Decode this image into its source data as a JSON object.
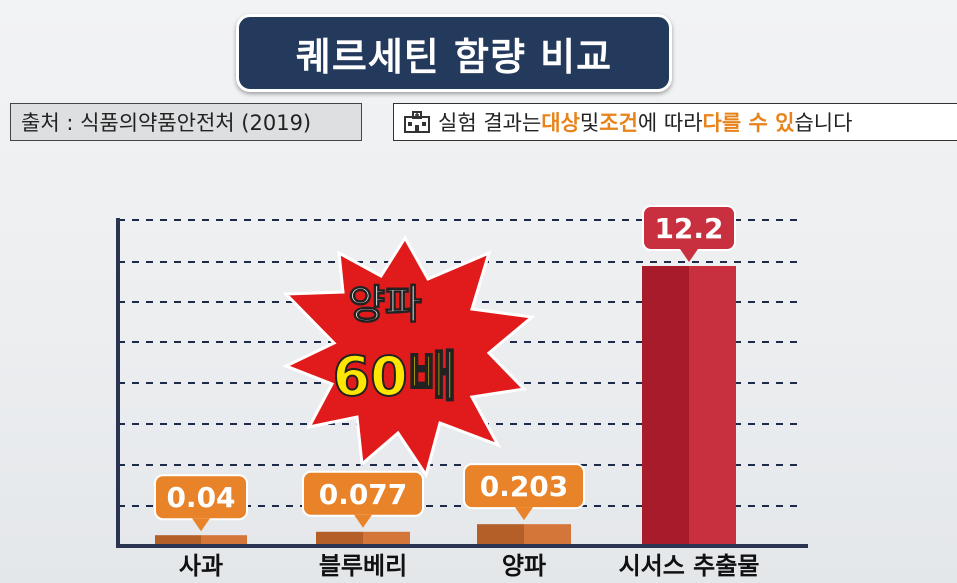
{
  "title": "퀘르세틴 함량 비교",
  "source": "출처 : 식품의약품안전처 (2019)",
  "note": {
    "parts": [
      {
        "text": "실험 결과는 ",
        "highlight": false
      },
      {
        "text": "대상",
        "highlight": true
      },
      {
        "text": " 및 ",
        "highlight": false
      },
      {
        "text": "조건",
        "highlight": true
      },
      {
        "text": "에 따라 ",
        "highlight": false
      },
      {
        "text": "다를 수 있",
        "highlight": true
      },
      {
        "text": "습니다",
        "highlight": false
      }
    ],
    "icon": "hospital-icon"
  },
  "burst": {
    "line1": "양파",
    "line2": "60배"
  },
  "colors": {
    "title_bg": "#243a5c",
    "accent": "#e8832a",
    "bar_small": "#c0662e",
    "bar_big": "#b5202f",
    "label_big": "#c9303f",
    "axis": "#2a3450"
  },
  "chart_data": {
    "type": "bar",
    "categories": [
      "사과",
      "블루베리",
      "양파",
      "시서스 추출물"
    ],
    "values": [
      0.04,
      0.077,
      0.203,
      12.2
    ],
    "value_labels": [
      "0.04",
      "0.077",
      "0.203",
      "12.2"
    ],
    "grid": true
  }
}
